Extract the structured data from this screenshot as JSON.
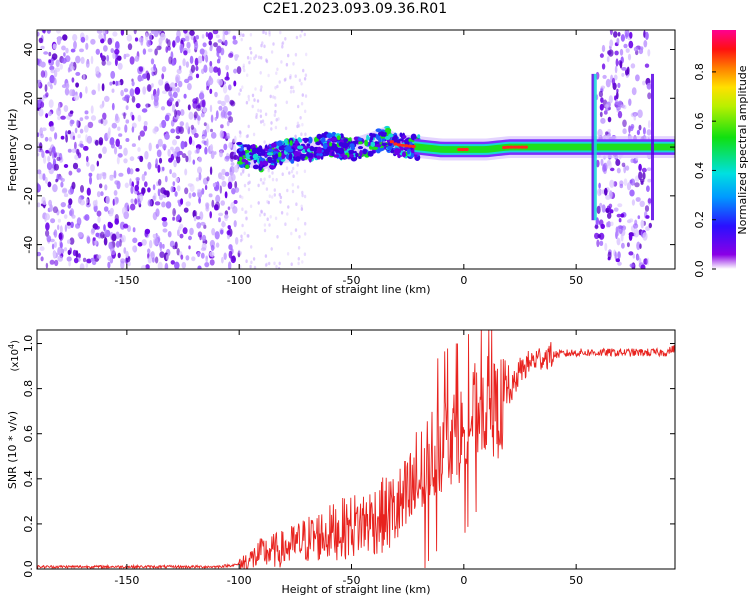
{
  "title": "C2E1.2023.093.09.36.R01",
  "colors": {
    "snr_line": "#e8231f",
    "spec_core": "#1de01d",
    "spec_hot": "#ff2a1a",
    "spec_mid": "#18d8d8",
    "spec_low": "#6a00e8",
    "spec_faint": "#c9a8ff"
  },
  "chart_data": [
    {
      "type": "heatmap",
      "xlabel": "Height of straight line (km)",
      "ylabel": "Frequency (Hz)",
      "xlim": [
        -190,
        94
      ],
      "ylim": [
        -50,
        48
      ],
      "xticks": [
        "-150",
        "-100",
        "-50",
        "0",
        "50"
      ],
      "xtick_values": [
        -150,
        -100,
        -50,
        0,
        50
      ],
      "yticks": [
        "-40",
        "-20",
        "0",
        "20",
        "40"
      ],
      "ytick_values": [
        -40,
        -20,
        0,
        20,
        40
      ],
      "noise_regions": [
        [
          -190,
          -100
        ],
        [
          59,
          83
        ]
      ],
      "ridge": {
        "x": [
          -100,
          -90,
          -80,
          -70,
          -60,
          -50,
          -40,
          -35,
          -30,
          -20,
          -10,
          0,
          10,
          20,
          30,
          40,
          50,
          55,
          60,
          70,
          80,
          85,
          90,
          94
        ],
        "y": [
          -3,
          -5,
          -2,
          -1,
          1,
          -1,
          2,
          4,
          1,
          0,
          -1,
          -1,
          -1,
          0,
          0,
          0,
          0,
          0,
          0,
          0,
          0,
          0,
          0,
          0
        ]
      },
      "colorbar": {
        "label": "Normalized spectral amplitude",
        "ticks": [
          "0.0",
          "0.2",
          "0.4",
          "0.6",
          "0.8"
        ],
        "tick_values": [
          0.0,
          0.2,
          0.4,
          0.6,
          0.8
        ],
        "range": [
          0,
          0.97
        ],
        "colormap": "rainbow (violet-blue-cyan-green-yellow-red-magenta)"
      }
    },
    {
      "type": "line",
      "xlabel": "Height of straight line (km)",
      "ylabel": "SNR (10 * v/v)",
      "y_multiplier": "(x10",
      "y_multiplier_exp": "4",
      "y_multiplier_close": ")",
      "xlim": [
        -190,
        94
      ],
      "ylim": [
        0,
        1.06
      ],
      "xticks": [
        "-150",
        "-100",
        "-50",
        "0",
        "50"
      ],
      "xtick_values": [
        -150,
        -100,
        -50,
        0,
        50
      ],
      "yticks": [
        "0.0",
        "0.2",
        "0.4",
        "0.6",
        "0.8",
        "1.0"
      ],
      "ytick_values": [
        0,
        0.2,
        0.4,
        0.6,
        0.8,
        1.0
      ],
      "series": [
        {
          "x": [
            -190,
            -150,
            -110,
            -100,
            -95,
            -90,
            -80,
            -70,
            -60,
            -50,
            -40,
            -30,
            -25,
            -20,
            -15,
            -10,
            -5,
            0,
            5,
            10,
            15,
            20,
            25,
            30,
            35,
            40,
            50,
            60,
            70,
            80,
            90,
            94
          ],
          "y": [
            0.01,
            0.01,
            0.01,
            0.02,
            0.04,
            0.07,
            0.09,
            0.13,
            0.16,
            0.19,
            0.22,
            0.26,
            0.3,
            0.4,
            0.5,
            0.55,
            0.6,
            0.6,
            0.7,
            0.73,
            0.7,
            0.76,
            0.88,
            0.92,
            0.94,
            0.95,
            0.96,
            0.96,
            0.96,
            0.96,
            0.96,
            0.98
          ]
        }
      ]
    }
  ]
}
